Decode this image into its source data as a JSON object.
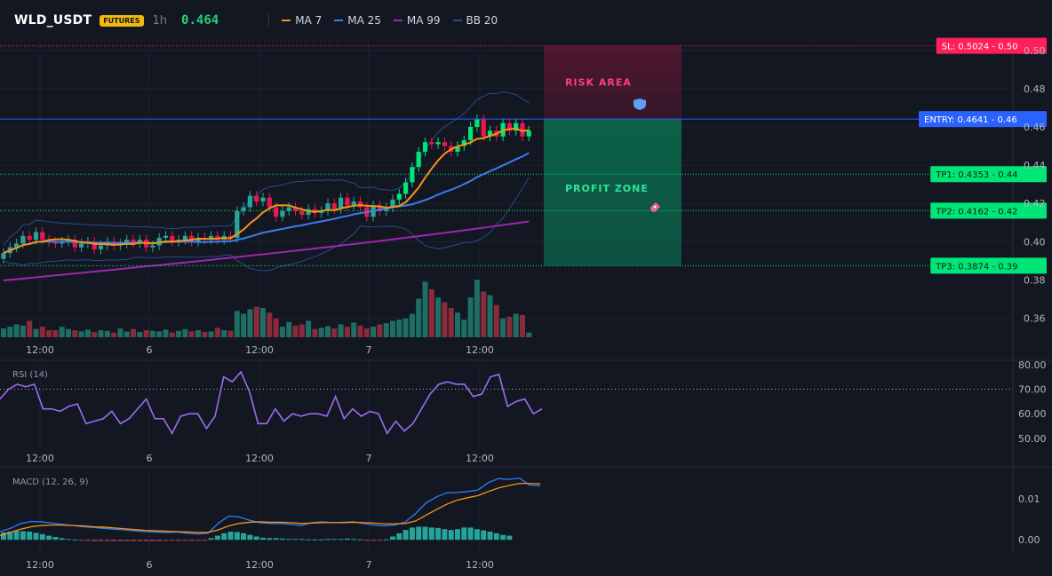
{
  "header": {
    "symbol": "WLD_USDT",
    "badge": "FUTURES",
    "timeframe": "1h",
    "price": "0.464",
    "legend": [
      {
        "label": "MA 7",
        "color": "#f7931a"
      },
      {
        "label": "MA 25",
        "color": "#3d7bf0"
      },
      {
        "label": "MA 99",
        "color": "#9c27b0"
      },
      {
        "label": "BB 20",
        "color": "#2a4b8d"
      }
    ]
  },
  "colors": {
    "up": "#26a69a",
    "up_bright": "#00e676",
    "down": "#e8174f",
    "sl": "#ff1f5a",
    "entry": "#2962ff",
    "tp": "#00e676"
  },
  "chart_data": [
    {
      "type": "candlestick",
      "title": "WLD_USDT 1h",
      "ylim": [
        0.35,
        0.505
      ],
      "yticks": [
        "0.50",
        "0.48",
        "0.46",
        "0.44",
        "0.42",
        "0.40",
        "0.38",
        "0.36"
      ],
      "xticks": [
        "12:00",
        "6",
        "12:00",
        "7",
        "12:00"
      ],
      "closes": [
        0.394,
        0.397,
        0.399,
        0.403,
        0.401,
        0.405,
        0.401,
        0.4,
        0.399,
        0.4,
        0.401,
        0.397,
        0.399,
        0.4,
        0.396,
        0.398,
        0.4,
        0.398,
        0.399,
        0.401,
        0.399,
        0.401,
        0.397,
        0.398,
        0.402,
        0.403,
        0.4,
        0.401,
        0.403,
        0.4,
        0.402,
        0.401,
        0.403,
        0.401,
        0.403,
        0.402,
        0.416,
        0.418,
        0.424,
        0.421,
        0.423,
        0.418,
        0.413,
        0.416,
        0.418,
        0.416,
        0.414,
        0.417,
        0.415,
        0.416,
        0.42,
        0.417,
        0.423,
        0.419,
        0.421,
        0.418,
        0.413,
        0.419,
        0.416,
        0.418,
        0.422,
        0.425,
        0.431,
        0.439,
        0.447,
        0.452,
        0.451,
        0.452,
        0.45,
        0.447,
        0.45,
        0.453,
        0.46,
        0.464,
        0.455,
        0.458,
        0.455,
        0.462,
        0.458,
        0.462,
        0.455,
        0.458
      ],
      "volume_ylim": [
        0,
        100
      ],
      "volumes": [
        15,
        18,
        22,
        20,
        28,
        14,
        18,
        12,
        12,
        18,
        14,
        12,
        10,
        13,
        9,
        12,
        11,
        8,
        15,
        10,
        14,
        9,
        12,
        11,
        10,
        13,
        8,
        11,
        14,
        10,
        12,
        9,
        10,
        16,
        12,
        11,
        45,
        40,
        48,
        52,
        50,
        42,
        32,
        18,
        26,
        20,
        22,
        28,
        14,
        16,
        19,
        15,
        22,
        18,
        25,
        20,
        15,
        18,
        22,
        24,
        28,
        30,
        32,
        40,
        66,
        95,
        82,
        68,
        60,
        50,
        42,
        30,
        68,
        98,
        78,
        72,
        55,
        32,
        35,
        40,
        38,
        8
      ],
      "overlays": [
        {
          "name": "MA 7",
          "color": "#f7931a"
        },
        {
          "name": "MA 25",
          "color": "#3d7bf0"
        },
        {
          "name": "MA 99",
          "color": "#9c27b0"
        },
        {
          "name": "BB 20",
          "color": "#2a4b8d"
        }
      ],
      "levels": [
        {
          "label": "SL: 0.5024 - 0.50",
          "value": 0.5024,
          "style": "dotted",
          "color": "#ff1f5a"
        },
        {
          "label": "ENTRY: 0.4641 - 0.46",
          "value": 0.4641,
          "style": "solid",
          "color": "#2962ff"
        },
        {
          "label": "TP1: 0.4353 - 0.44",
          "value": 0.4353,
          "style": "dotted",
          "color": "#00e676"
        },
        {
          "label": "TP2: 0.4162 - 0.42",
          "value": 0.4162,
          "style": "dotted",
          "color": "#00e676"
        },
        {
          "label": "TP3: 0.3874 - 0.39",
          "value": 0.3874,
          "style": "dotted",
          "color": "#00e676"
        }
      ],
      "zones": [
        {
          "label": "RISK AREA",
          "from": 0.4641,
          "to": 0.5024,
          "color": "#e8174f",
          "icon": "shield-icon"
        },
        {
          "label": "PROFIT ZONE",
          "from": 0.3874,
          "to": 0.4641,
          "color": "#00e676",
          "icon": "rocket-icon"
        }
      ]
    },
    {
      "type": "line",
      "title": "RSI (14)",
      "ylim": [
        46,
        81
      ],
      "yticks": [
        "80.00",
        "70.00",
        "60.00",
        "50.00"
      ],
      "reference_line": 70,
      "xticks": [
        "12:00",
        "6",
        "12:00",
        "7",
        "12:00"
      ],
      "series": [
        {
          "name": "RSI (14)",
          "color": "#9d6cf2",
          "values": [
            66,
            70,
            72,
            71,
            72,
            62,
            62,
            61,
            63,
            64,
            56,
            57,
            58,
            61,
            56,
            58,
            62,
            66,
            58,
            58,
            52,
            59,
            60,
            60,
            54,
            59,
            75,
            73,
            77,
            69,
            56,
            56,
            62,
            57,
            60,
            59,
            60,
            60,
            59,
            67,
            58,
            62,
            59,
            61,
            60,
            52,
            57,
            53,
            56,
            62,
            68,
            72,
            73,
            72,
            72,
            67,
            68,
            75,
            76,
            63,
            65,
            66,
            60,
            62
          ]
        }
      ]
    },
    {
      "type": "bar+line",
      "title": "MACD (12, 26, 9)",
      "ylim": [
        -0.003,
        0.017
      ],
      "yticks": [
        "0.01",
        "0.00"
      ],
      "xticks": [
        "12:00",
        "6",
        "12:00",
        "7",
        "12:00"
      ],
      "histogram": [
        0.0018,
        0.002,
        0.0022,
        0.0021,
        0.002,
        0.0017,
        0.0014,
        0.001,
        0.0007,
        0.0004,
        0.0002,
        0.0001,
        -0.0001,
        -0.0002,
        -0.0003,
        -0.0003,
        -0.0003,
        -0.0003,
        -0.0003,
        -0.0003,
        -0.0003,
        -0.0003,
        -0.0003,
        -0.0003,
        -0.0003,
        -0.0002,
        -0.0002,
        -0.0002,
        -0.0002,
        -0.0001,
        -0.0001,
        -0.0001,
        0.0004,
        0.001,
        0.0016,
        0.002,
        0.0019,
        0.0016,
        0.0012,
        0.0008,
        0.0005,
        0.0004,
        0.0004,
        0.0003,
        0.0002,
        0.0002,
        0.0002,
        0.0001,
        0.0001,
        0.0001,
        0.0002,
        0.0002,
        0.0002,
        0.0003,
        0.0002,
        0.0001,
        -0.0001,
        -0.0002,
        -0.0001,
        0.0001,
        0.0008,
        0.0016,
        0.0024,
        0.003,
        0.0032,
        0.0032,
        0.003,
        0.0029,
        0.0026,
        0.0024,
        0.0026,
        0.003,
        0.003,
        0.0026,
        0.0023,
        0.002,
        0.0016,
        0.0012,
        0.001
      ],
      "series": [
        {
          "name": "MACD",
          "color": "#2e7cf6",
          "values": [
            0.002,
            0.0028,
            0.004,
            0.0045,
            0.0044,
            0.0041,
            0.0038,
            0.0035,
            0.0032,
            0.003,
            0.0028,
            0.0026,
            0.0024,
            0.0022,
            0.002,
            0.0019,
            0.0018,
            0.0019,
            0.0016,
            0.0014,
            0.0016,
            0.004,
            0.0058,
            0.0056,
            0.0048,
            0.0042,
            0.004,
            0.004,
            0.0038,
            0.0035,
            0.0042,
            0.0044,
            0.0042,
            0.0043,
            0.0044,
            0.004,
            0.0036,
            0.0034,
            0.0036,
            0.0044,
            0.0064,
            0.009,
            0.0105,
            0.0115,
            0.0116,
            0.0118,
            0.0122,
            0.014,
            0.015,
            0.0148,
            0.0151,
            0.0134,
            0.0132
          ]
        },
        {
          "name": "Signal",
          "color": "#f7931a",
          "values": [
            0.001,
            0.0018,
            0.0026,
            0.0032,
            0.0035,
            0.0036,
            0.0036,
            0.0035,
            0.0034,
            0.0032,
            0.0031,
            0.0029,
            0.0027,
            0.0025,
            0.0023,
            0.0022,
            0.0021,
            0.002,
            0.0019,
            0.0018,
            0.0018,
            0.0024,
            0.0034,
            0.004,
            0.0043,
            0.0044,
            0.0043,
            0.0043,
            0.0042,
            0.004,
            0.0041,
            0.0042,
            0.0042,
            0.0042,
            0.0043,
            0.0042,
            0.0041,
            0.0039,
            0.0039,
            0.004,
            0.0046,
            0.006,
            0.0074,
            0.0087,
            0.0097,
            0.0103,
            0.0108,
            0.0118,
            0.0127,
            0.0133,
            0.0138,
            0.0138,
            0.0137
          ]
        }
      ]
    }
  ]
}
